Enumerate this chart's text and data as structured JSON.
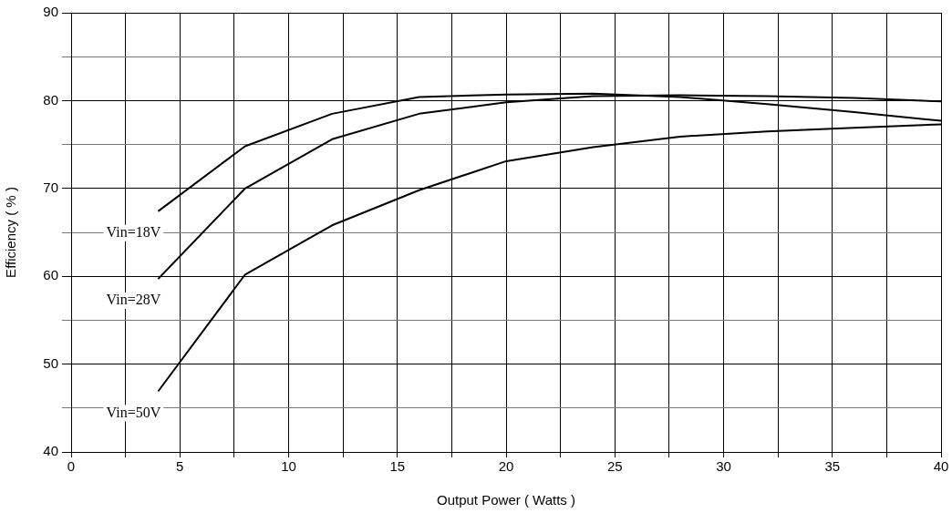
{
  "chart_data": {
    "type": "line",
    "xlabel": "Output Power ( Watts )",
    "ylabel": "Efficiency ( % )",
    "xlim": [
      0,
      40
    ],
    "xticks": [
      0,
      {
        "value": 2.5,
        "label": null
      },
      5,
      {
        "value": 7.5,
        "label": null
      },
      10,
      {
        "value": 12.5,
        "label": null
      },
      15,
      {
        "value": 17.5,
        "label": null
      },
      20,
      {
        "value": 22.5,
        "label": null
      },
      25,
      {
        "value": 27.5,
        "label": null
      },
      30,
      {
        "value": 32.5,
        "label": null
      },
      35,
      {
        "value": 37.5,
        "label": null
      },
      40
    ],
    "ylim": [
      40,
      90
    ],
    "yticks": [
      40,
      {
        "value": 45,
        "label": null
      },
      50,
      {
        "value": 55,
        "label": null
      },
      60,
      {
        "value": 65,
        "label": null
      },
      70,
      {
        "value": 75,
        "label": null
      },
      80,
      {
        "value": 85,
        "label": null
      },
      90
    ],
    "grid": true,
    "legend": false,
    "marker": "none",
    "line_style": "solid",
    "series": [
      {
        "name": "Vin=18V",
        "color": "#000000",
        "x": [
          4,
          8,
          12,
          16,
          20,
          24,
          28,
          32,
          36,
          40
        ],
        "values": [
          67.4,
          74.8,
          78.5,
          80.4,
          80.7,
          80.8,
          80.4,
          79.6,
          78.7,
          77.7
        ]
      },
      {
        "name": "Vin=28V",
        "color": "#000000",
        "x": [
          4,
          8,
          12,
          16,
          20,
          24,
          28,
          32,
          36,
          40
        ],
        "values": [
          59.7,
          70.0,
          75.6,
          78.5,
          79.8,
          80.5,
          80.6,
          80.5,
          80.3,
          79.9
        ]
      },
      {
        "name": "Vin=50V",
        "color": "#000000",
        "x": [
          4,
          8,
          12,
          16,
          20,
          24,
          28,
          32,
          36,
          40
        ],
        "values": [
          46.9,
          60.2,
          65.8,
          69.8,
          73.1,
          74.7,
          75.9,
          76.5,
          76.9,
          77.3
        ]
      }
    ]
  }
}
